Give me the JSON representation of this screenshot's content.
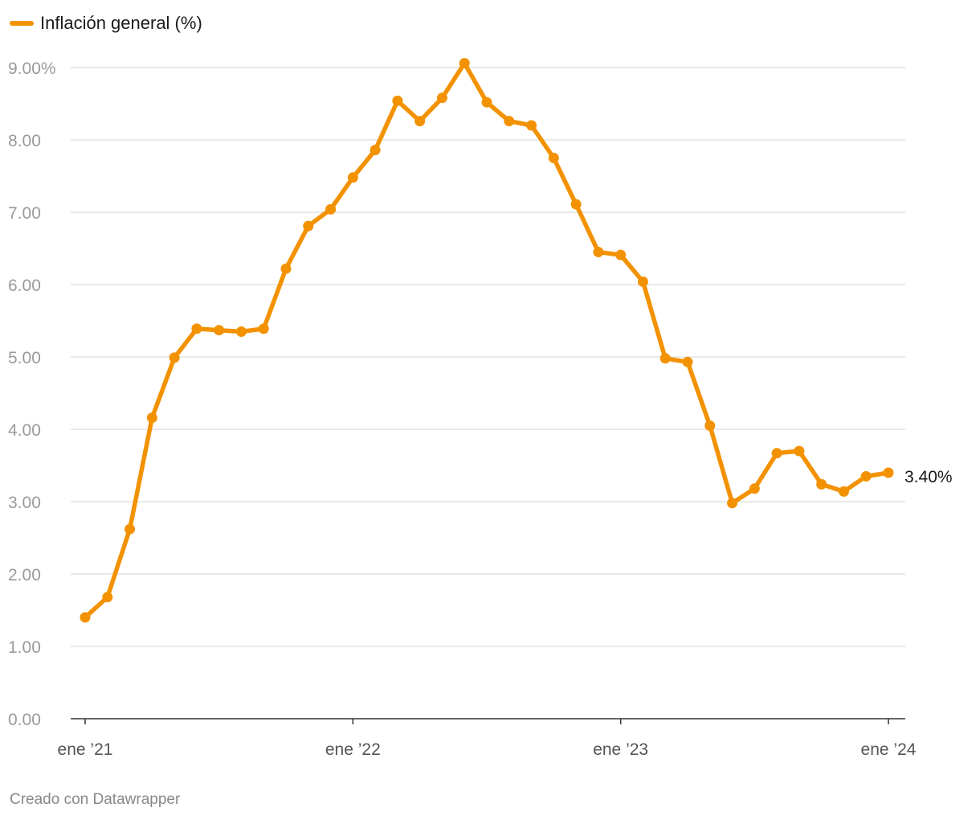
{
  "legend": {
    "label": "Inflación general (%)",
    "color": "#f39200"
  },
  "footer": {
    "text": "Creado con Datawrapper"
  },
  "chart_data": {
    "type": "line",
    "series": [
      {
        "name": "Inflación general (%)",
        "color": "#f39200",
        "x": [
          "2021-01",
          "2021-02",
          "2021-03",
          "2021-04",
          "2021-05",
          "2021-06",
          "2021-07",
          "2021-08",
          "2021-09",
          "2021-10",
          "2021-11",
          "2021-12",
          "2022-01",
          "2022-02",
          "2022-03",
          "2022-04",
          "2022-05",
          "2022-06",
          "2022-07",
          "2022-08",
          "2022-09",
          "2022-10",
          "2022-11",
          "2022-12",
          "2023-01",
          "2023-02",
          "2023-03",
          "2023-04",
          "2023-05",
          "2023-06",
          "2023-07",
          "2023-08",
          "2023-09",
          "2023-10",
          "2023-11",
          "2023-12",
          "2024-01"
        ],
        "values": [
          1.4,
          1.68,
          2.62,
          4.16,
          4.99,
          5.39,
          5.37,
          5.35,
          5.39,
          6.22,
          6.81,
          7.04,
          7.48,
          7.86,
          8.54,
          8.26,
          8.58,
          9.06,
          8.52,
          8.26,
          8.2,
          7.75,
          7.11,
          6.45,
          6.41,
          6.04,
          4.98,
          4.93,
          4.05,
          2.98,
          3.18,
          3.67,
          3.7,
          3.24,
          3.14,
          3.35,
          3.4
        ]
      }
    ],
    "y_ticks": [
      "0.00",
      "1.00",
      "2.00",
      "3.00",
      "4.00",
      "5.00",
      "6.00",
      "7.00",
      "8.00",
      "9.00%"
    ],
    "ylim": [
      0,
      9
    ],
    "x_ticks": [
      {
        "x": "2021-01",
        "label": "ene ’21"
      },
      {
        "x": "2022-01",
        "label": "ene ’22"
      },
      {
        "x": "2023-01",
        "label": "ene ’23"
      },
      {
        "x": "2024-01",
        "label": "ene ’24"
      }
    ],
    "end_label": "3.40%",
    "grid": true,
    "legend_position": "top-left"
  }
}
